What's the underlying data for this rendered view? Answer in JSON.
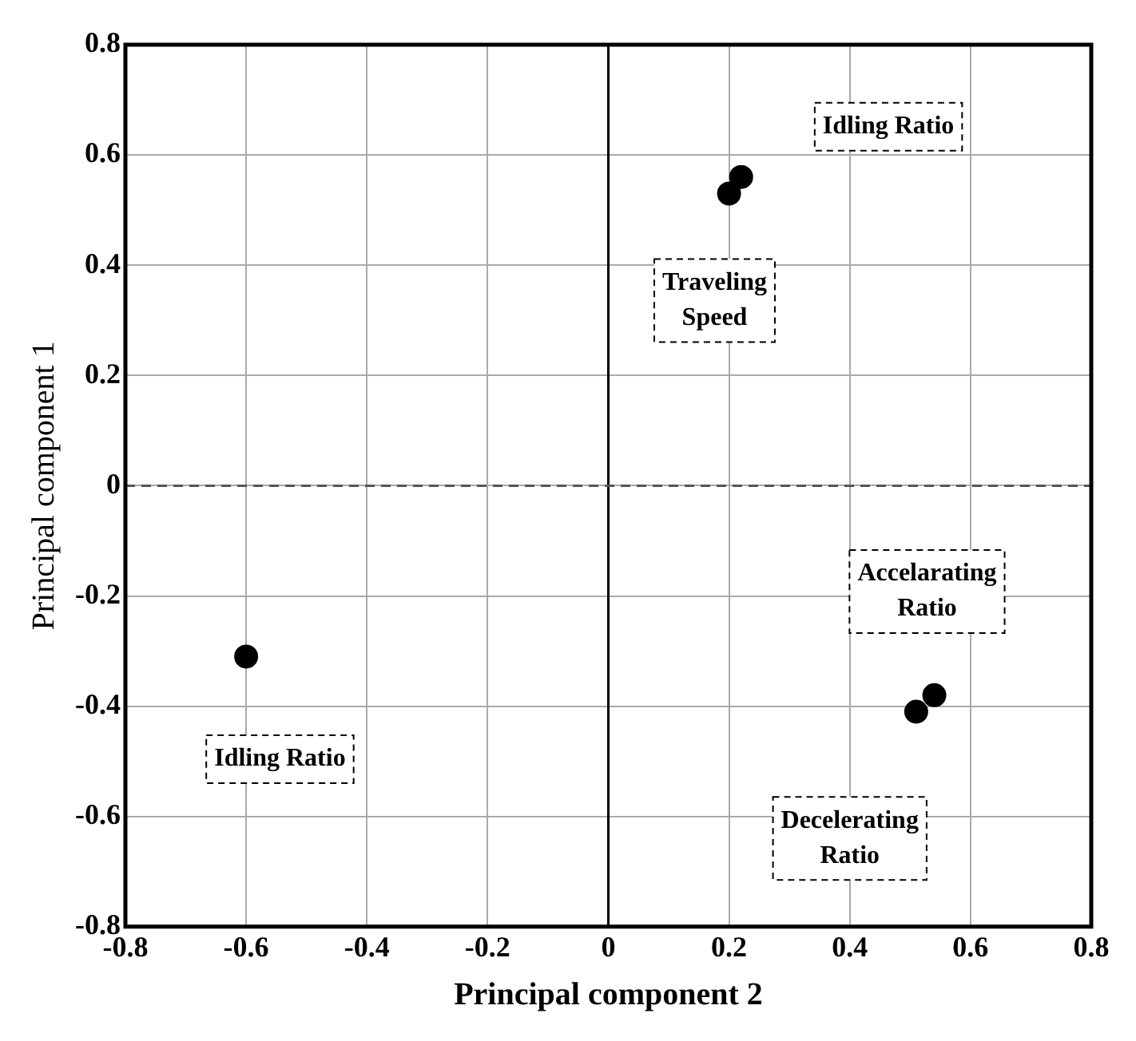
{
  "chart_data": {
    "type": "scatter",
    "xlabel": "Principal component 2",
    "ylabel": "Principal component 1",
    "x": [
      0.22,
      0.2,
      -0.6,
      0.54,
      0.51
    ],
    "series": [
      {
        "color": "#000000",
        "values": [
          0.56,
          0.53,
          -0.31,
          -0.38,
          -0.41
        ]
      }
    ],
    "xlim": [
      -0.8,
      0.8
    ],
    "ylim": [
      -0.8,
      0.8
    ],
    "xticks": [
      -0.8,
      -0.6,
      -0.4,
      -0.2,
      0,
      0.2,
      0.4,
      0.6,
      0.8
    ],
    "yticks": [
      -0.8,
      -0.6,
      -0.4,
      -0.2,
      0,
      0.2,
      0.4,
      0.6,
      0.8
    ],
    "grid": true,
    "legend": false,
    "marker": "circle",
    "ref_lines": [
      {
        "axis": "x",
        "value": 0,
        "color": "#000000",
        "line_style": "solid"
      },
      {
        "axis": "y",
        "value": 0,
        "color": "#555555",
        "line_style": "dashed"
      }
    ],
    "annotations": [
      "Idling Ratio",
      "Traveling\nSpeed",
      "Accelarating\nRatio",
      "Idling Ratio",
      "Decelerating\nRatio"
    ]
  }
}
